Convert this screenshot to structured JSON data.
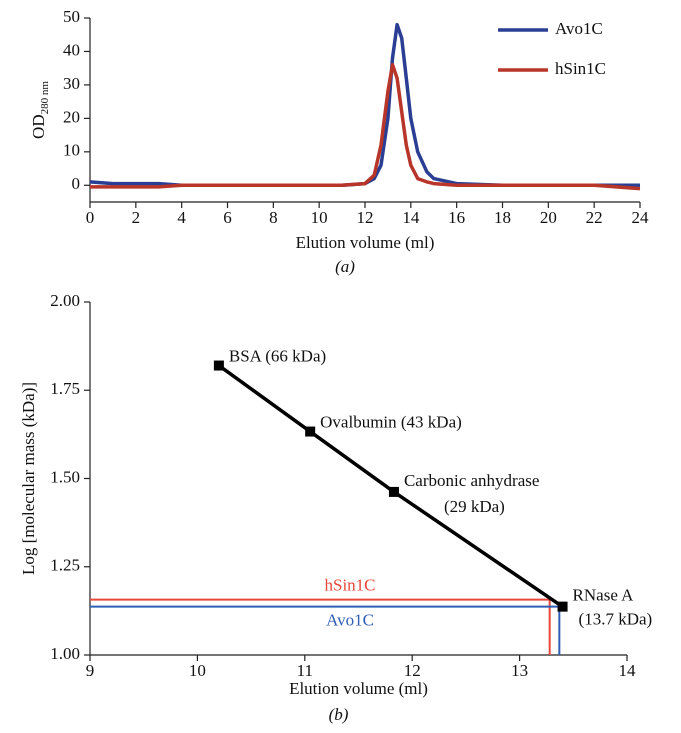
{
  "chart_data": [
    {
      "type": "line",
      "panel_label": "(a)",
      "x_label": "Elution volume (ml)",
      "y_label": "OD",
      "y_label_sub": "280 nm",
      "xlim": [
        0,
        24
      ],
      "xticks": [
        0,
        2,
        4,
        6,
        8,
        10,
        12,
        14,
        16,
        18,
        20,
        22,
        24
      ],
      "ylim": [
        -5,
        50
      ],
      "yticks": [
        0,
        10,
        20,
        30,
        40,
        50
      ],
      "legend": "top-right",
      "x": [
        0,
        1,
        2,
        3,
        4,
        6,
        8,
        10,
        11,
        12,
        12.4,
        12.7,
        13,
        13.2,
        13.4,
        13.6,
        13.8,
        14,
        14.3,
        14.7,
        15,
        16,
        18,
        20,
        22,
        24
      ],
      "series": [
        {
          "name": "Avo1C",
          "color": "#2a3f94",
          "values": [
            1,
            0.5,
            0.5,
            0.5,
            0,
            0,
            0,
            0,
            0,
            0.5,
            2,
            6,
            20,
            38,
            48,
            44,
            32,
            20,
            10,
            4,
            2,
            0.5,
            0,
            0,
            0,
            0
          ]
        },
        {
          "name": "hSin1C",
          "color": "#b8352a",
          "values": [
            -0.5,
            -0.5,
            -0.5,
            -0.5,
            0,
            0,
            0,
            0,
            0,
            0.5,
            3,
            12,
            28,
            36,
            32,
            22,
            12,
            6,
            2,
            1,
            0.5,
            0,
            0,
            0,
            0,
            -1
          ]
        }
      ]
    },
    {
      "type": "scatter",
      "panel_label": "(b)",
      "x_label": "Elution volume (ml)",
      "y_label": "Log [molecular mass (kDa)]",
      "xlim": [
        9,
        14
      ],
      "xticks": [
        9,
        10,
        11,
        12,
        13,
        14
      ],
      "ylim": [
        1,
        2
      ],
      "yticks": [
        {
          "value": 1,
          "label": "1.00"
        },
        {
          "value": 1.25,
          "label": "1.25"
        },
        {
          "value": 1.5,
          "label": "1.50"
        },
        {
          "value": 1.75,
          "label": "1.75"
        },
        {
          "value": 2,
          "label": "2.00"
        }
      ],
      "color": "#000000",
      "x": [
        10.2,
        11.05,
        11.83,
        13.4
      ],
      "values": [
        1.82,
        1.633,
        1.462,
        1.137
      ],
      "point_labels": [
        [
          "BSA (66 kDa)"
        ],
        [
          "Ovalbumin (43 kDa)"
        ],
        [
          "Carbonic anhydrase",
          "(29 kDa)"
        ],
        [
          "RNase A",
          "(13.7 kDa)"
        ]
      ],
      "markers": [
        {
          "name": "hSin1C",
          "color": "#e8473a",
          "x": 13.28,
          "y": 1.157
        },
        {
          "name": "Avo1C",
          "color": "#2f5fb5",
          "x": 13.37,
          "y": 1.137
        }
      ]
    }
  ]
}
